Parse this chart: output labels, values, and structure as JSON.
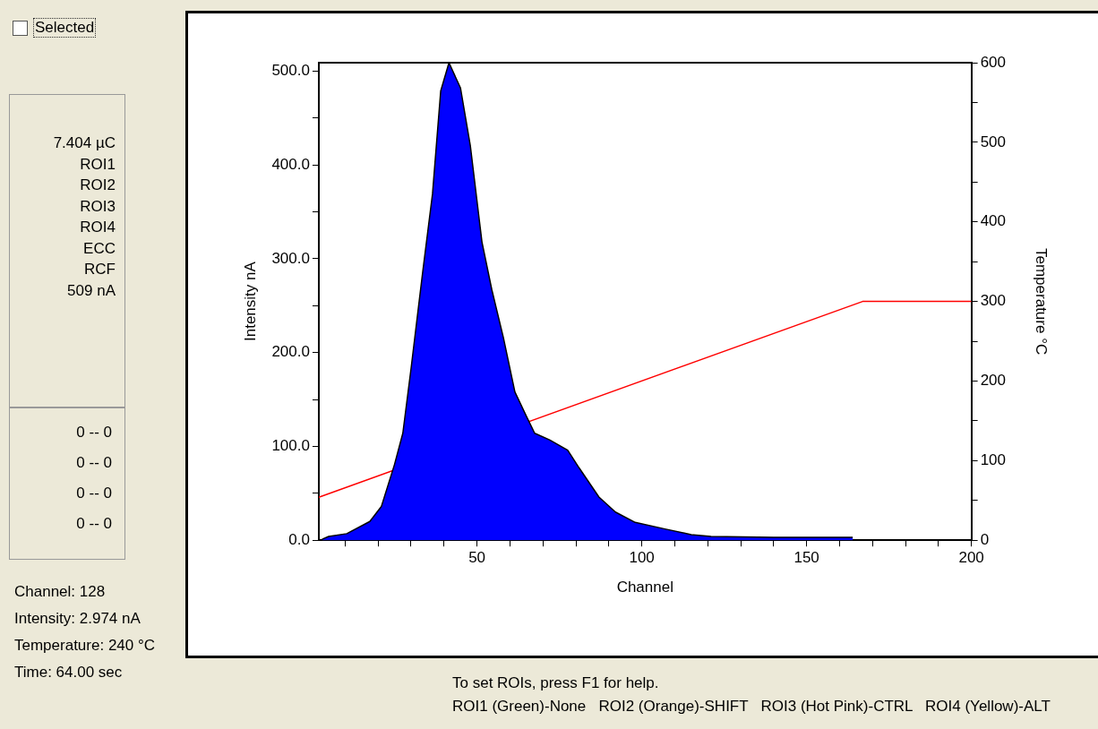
{
  "chart_data": {
    "type": "area",
    "xlabel": "Channel",
    "ylabel": "Intensity nA",
    "y2label": "Temperature °C",
    "xlim": [
      2,
      200
    ],
    "xticks": [
      {
        "value": 10,
        "label": null
      },
      {
        "value": 20,
        "label": null
      },
      {
        "value": 30,
        "label": null
      },
      {
        "value": 40,
        "label": null
      },
      50,
      {
        "value": 60,
        "label": null
      },
      {
        "value": 70,
        "label": null
      },
      {
        "value": 80,
        "label": null
      },
      {
        "value": 90,
        "label": null
      },
      100,
      {
        "value": 110,
        "label": null
      },
      {
        "value": 120,
        "label": null
      },
      {
        "value": 130,
        "label": null
      },
      {
        "value": 140,
        "label": null
      },
      150,
      {
        "value": 160,
        "label": null
      },
      {
        "value": 170,
        "label": null
      },
      {
        "value": 180,
        "label": null
      },
      {
        "value": 190,
        "label": null
      },
      200
    ],
    "ylim": [
      0,
      509
    ],
    "yticks": [
      {
        "value": 0,
        "label": "0.0"
      },
      {
        "value": 50,
        "label": null
      },
      {
        "value": 100,
        "label": "100.0"
      },
      {
        "value": 150,
        "label": null
      },
      {
        "value": 200,
        "label": "200.0"
      },
      {
        "value": 250,
        "label": null
      },
      {
        "value": 300,
        "label": "300.0"
      },
      {
        "value": 350,
        "label": null
      },
      {
        "value": 400,
        "label": "400.0"
      },
      {
        "value": 450,
        "label": null
      },
      {
        "value": 500,
        "label": "500.0"
      }
    ],
    "y2lim": [
      0,
      600
    ],
    "y2ticks": [
      0,
      {
        "value": 50,
        "label": null
      },
      100,
      {
        "value": 150,
        "label": null
      },
      200,
      {
        "value": 250,
        "label": null
      },
      300,
      {
        "value": 350,
        "label": null
      },
      400,
      {
        "value": 450,
        "label": null
      },
      500,
      {
        "value": 550,
        "label": null
      },
      600
    ],
    "grid": false,
    "legend": false,
    "series": [
      {
        "color": "#0000ff",
        "x": [
          3,
          5,
          10.5,
          17.5,
          21,
          25,
          27.5,
          30,
          33.5,
          36.5,
          39,
          41.5,
          45,
          48,
          51.5,
          54.5,
          58,
          61.5,
          65,
          67.5,
          72,
          77.5,
          81,
          87,
          92,
          98,
          107,
          115,
          121,
          140,
          164
        ],
        "values": [
          1,
          4,
          7,
          20,
          36,
          81,
          114,
          183,
          285,
          369,
          479,
          509,
          482,
          420,
          318,
          267,
          216,
          158,
          132,
          114,
          107,
          96,
          77,
          46,
          30,
          19,
          12,
          6,
          4,
          3,
          3
        ]
      },
      {
        "type": "line",
        "axis": "y2",
        "color": "#ff0000",
        "x": [
          2,
          167,
          200
        ],
        "values": [
          54,
          300,
          300
        ]
      }
    ],
    "annotations": [
      "Selected",
      "7.404 µC",
      "ROI1",
      "ROI2",
      "ROI3",
      "ROI4",
      "ECC",
      "RCF",
      "509 nA",
      "0 -- 0",
      "0 -- 0",
      "0 -- 0",
      "0 -- 0",
      "Channel: 128",
      "Intensity: 2.974 nA",
      "Temperature: 240 °C",
      "Time: 64.00 sec",
      "To set ROIs, press F1 for help.",
      "ROI1 (Green)-None   ROI2 (Orange)-SHIFT   ROI3 (Hot Pink)-CTRL   ROI4 (Yellow)-ALT"
    ]
  }
}
